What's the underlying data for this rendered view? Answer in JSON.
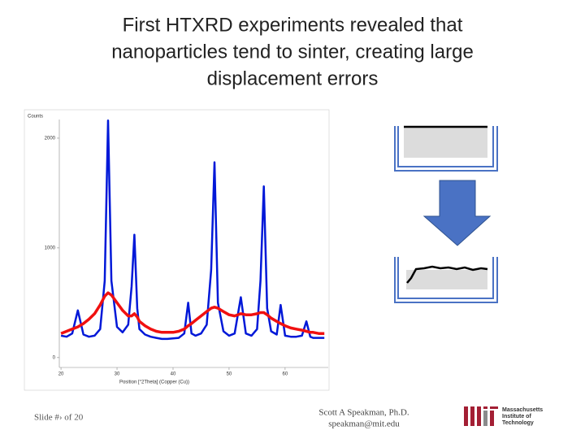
{
  "slide": {
    "title": [
      "First HTXRD experiments revealed that",
      "nanoparticles tend to sinter, creating large",
      "displacement errors"
    ],
    "footer_left": "Slide #› of 20",
    "footer_center": [
      "Scott A Speakman, Ph.D.",
      "speakman@mit.edu"
    ],
    "logo_text": [
      "Massachusetts",
      "Institute of",
      "Technology"
    ]
  },
  "chart_data": {
    "type": "line",
    "x_label": "Position [°2Theta] (Copper (Cu))",
    "y_label": "Counts",
    "x": [
      20,
      21,
      22,
      23,
      24,
      25,
      26,
      27,
      27.8,
      28.4,
      29,
      30,
      31,
      32,
      32.6,
      33.1,
      33.6,
      34,
      35,
      36,
      37,
      38,
      39,
      40,
      41,
      42,
      42.7,
      43.3,
      44,
      45,
      46,
      46.8,
      47.4,
      48,
      49,
      50,
      51,
      52.1,
      53,
      54,
      55,
      55.6,
      56.2,
      56.8,
      57.5,
      58.5,
      59.2,
      60,
      61,
      62,
      63,
      63.8,
      64.5,
      65,
      66,
      67
    ],
    "series": [
      {
        "color": "#0018d8",
        "values": [
          200,
          190,
          220,
          430,
          210,
          190,
          200,
          260,
          700,
          2160,
          700,
          280,
          230,
          300,
          650,
          1120,
          450,
          260,
          210,
          190,
          180,
          170,
          170,
          175,
          180,
          220,
          500,
          220,
          200,
          220,
          300,
          800,
          1780,
          500,
          240,
          200,
          220,
          550,
          220,
          200,
          260,
          700,
          1560,
          450,
          240,
          210,
          480,
          200,
          190,
          190,
          200,
          330,
          190,
          180,
          180,
          180
        ]
      },
      {
        "color": "#f01010",
        "values": [
          220,
          240,
          260,
          280,
          310,
          350,
          400,
          480,
          560,
          590,
          570,
          500,
          430,
          380,
          380,
          400,
          370,
          330,
          290,
          260,
          240,
          230,
          230,
          230,
          240,
          260,
          290,
          310,
          340,
          380,
          420,
          450,
          460,
          450,
          420,
          390,
          380,
          400,
          390,
          390,
          400,
          410,
          410,
          390,
          360,
          330,
          310,
          290,
          270,
          260,
          250,
          240,
          230,
          230,
          220,
          220
        ]
      }
    ],
    "xlim": [
      19.7,
      67.7
    ],
    "ylim": [
      -90,
      2170
    ],
    "xticks": [
      20,
      30,
      40,
      50,
      60
    ],
    "yticks": [
      0,
      1000,
      2000
    ]
  }
}
